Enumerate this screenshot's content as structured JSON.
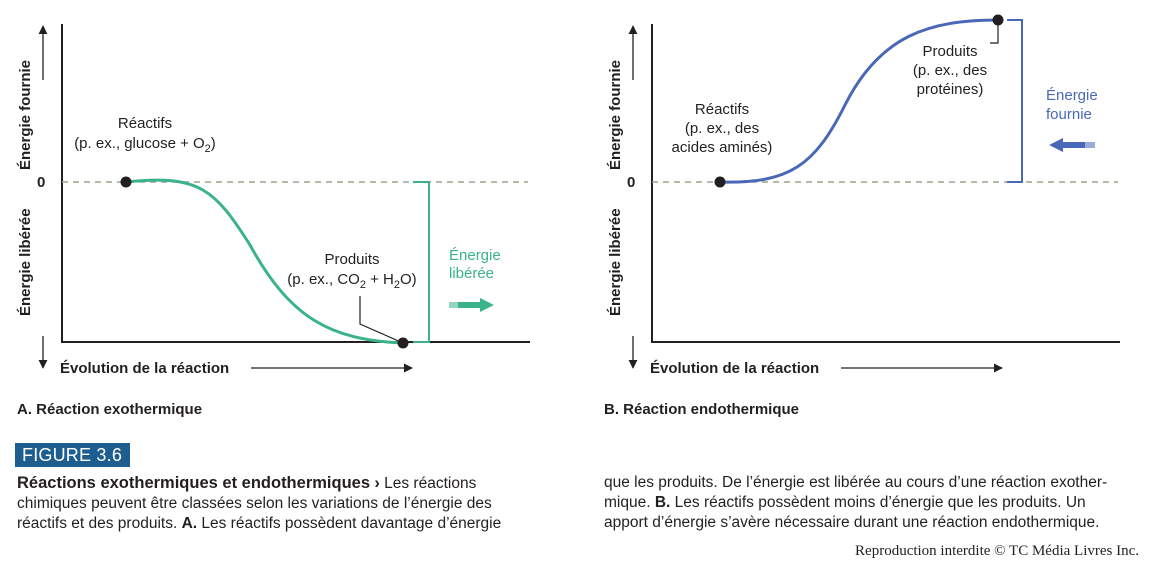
{
  "panel_a": {
    "y_upper": "Énergie fournie",
    "y_lower": "Énergie libérée",
    "zero": "0",
    "x_title": "Évolution de la réaction",
    "reactifs_line1": "Réactifs",
    "reactifs_line2_pre": "(p. ex., glucose + O",
    "reactifs_line2_sub": "2",
    "reactifs_line2_post": ")",
    "produits_line1": "Produits",
    "produits_line2_pre": "(p. ex., CO",
    "produits_line2_sub1": "2",
    "produits_line2_mid": " + H",
    "produits_line2_sub2": "2",
    "produits_line2_post": "O)",
    "energy_line1": "Énergie",
    "energy_line2": "libérée",
    "caption": "A. Réaction exothermique",
    "color": "#3bb38a"
  },
  "panel_b": {
    "y_upper": "Énergie fournie",
    "y_lower": "Énergie libérée",
    "zero": "0",
    "x_title": "Évolution de la réaction",
    "reactifs_line1": "Réactifs",
    "reactifs_line2": "(p. ex., des",
    "reactifs_line3": "acides aminés)",
    "produits_line1": "Produits",
    "produits_line2": "(p. ex., des",
    "produits_line3": "protéines)",
    "energy_line1": "Énergie",
    "energy_line2": "fournie",
    "caption": "B. Réaction endothermique",
    "color": "#4a68b8"
  },
  "figure_label": "FIGURE 3.6",
  "caption": {
    "heading": "Réactions exothermiques et endothermiques",
    "arrow": "›",
    "left_line1_rest": " Les réactions",
    "left_line2": "chimiques peuvent être classées selon les variations de l’énergie des",
    "left_line3_pre": "réactifs et des produits. ",
    "left_line3_bold": "A.",
    "left_line3_post": " Les réactifs possèdent davantage d’énergie",
    "right_line1": "que les produits. De l’énergie est libérée au cours d’une réaction exother-",
    "right_line2_pre": "mique. ",
    "right_line2_bold": "B.",
    "right_line2_post": " Les réactifs possèdent moins d’énergie que les produits. Un",
    "right_line3": "apport d’énergie s’avère nécessaire durant une réaction endothermique."
  },
  "copyright": "Reproduction interdite © TC Média Livres Inc.",
  "colors": {
    "badge": "#1d5d8f",
    "dashed": "#9aa58f",
    "axis": "#231f20"
  }
}
